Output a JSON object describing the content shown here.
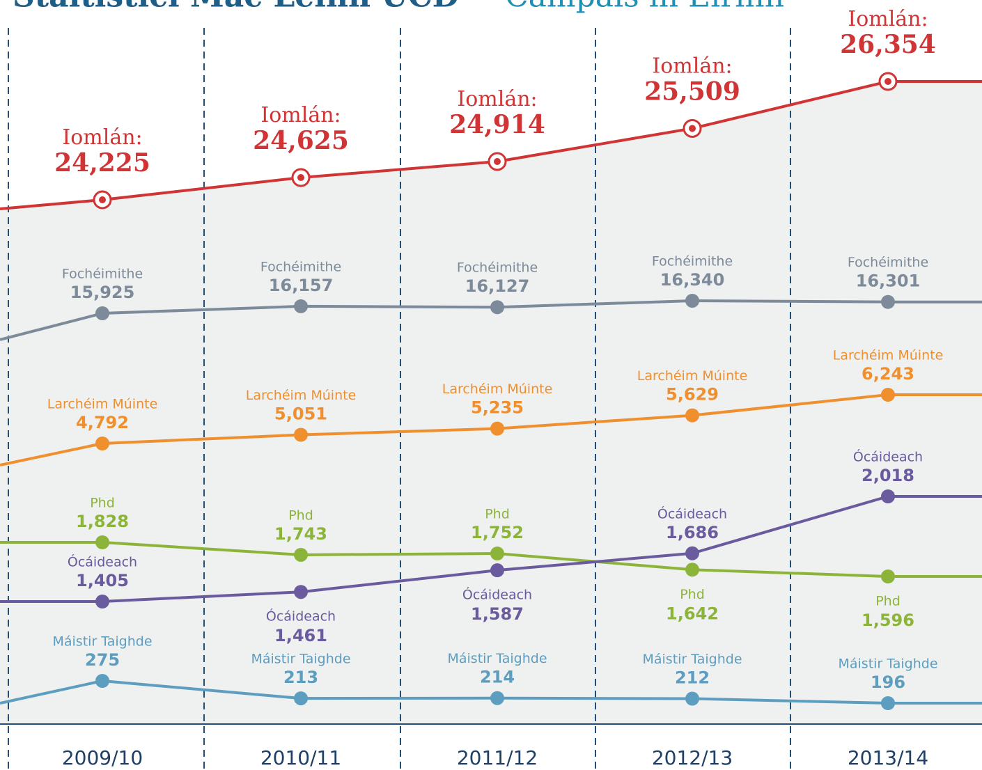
{
  "chart_data": {
    "type": "line",
    "title": "Staitisticí Mac Léinn UCD",
    "subtitle": "Campais in Éirinn",
    "categories": [
      "2009/10",
      "2010/11",
      "2011/12",
      "2012/13",
      "2013/14"
    ],
    "series": [
      {
        "name": "Iomlán:",
        "color": "#d03434",
        "values": [
          24225,
          24625,
          24914,
          25509,
          26354
        ],
        "value_labels": [
          "24,225",
          "24,625",
          "24,914",
          "25,509",
          "26,354"
        ]
      },
      {
        "name": "Fochéimithe",
        "color": "#7d8a99",
        "values": [
          15925,
          16157,
          16127,
          16340,
          16301
        ],
        "value_labels": [
          "15,925",
          "16,157",
          "16,127",
          "16,340",
          "16,301"
        ]
      },
      {
        "name": "Larchéim Múinte",
        "color": "#ef8f2e",
        "values": [
          4792,
          5051,
          5235,
          5629,
          6243
        ],
        "value_labels": [
          "4,792",
          "5,051",
          "5,235",
          "5,629",
          "6,243"
        ]
      },
      {
        "name": "Phd",
        "color": "#8db43a",
        "values": [
          1828,
          1743,
          1752,
          1642,
          1596
        ],
        "value_labels": [
          "1,828",
          "1,743",
          "1,752",
          "1,642",
          "1,596"
        ]
      },
      {
        "name": "Ócáideach",
        "color": "#6a5a9e",
        "values": [
          1405,
          1461,
          1587,
          1686,
          2018
        ],
        "value_labels": [
          "1,405",
          "1,461",
          "1,587",
          "1,686",
          "2,018"
        ]
      },
      {
        "name": "Máistir Taighde",
        "color": "#5d9dbf",
        "values": [
          275,
          213,
          214,
          212,
          196
        ]
      }
    ]
  }
}
